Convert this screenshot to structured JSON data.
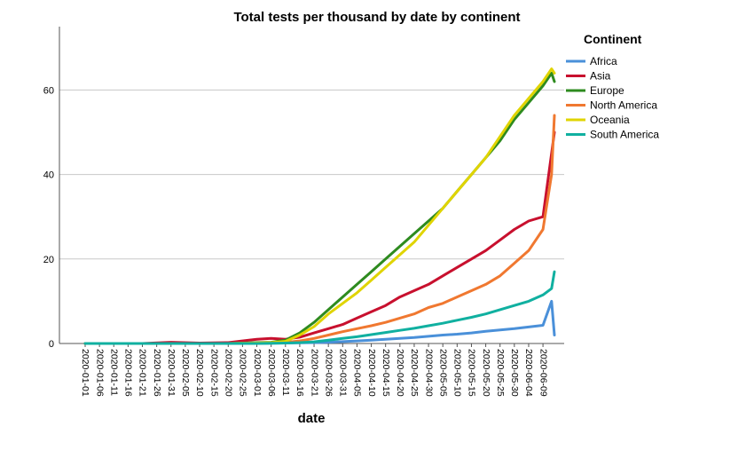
{
  "chart_data": {
    "type": "line",
    "title": "Total tests per thousand by date by continent",
    "xlabel": "date",
    "ylabel": "",
    "ylim": [
      0,
      75
    ],
    "yticks": [
      0,
      20,
      40,
      60
    ],
    "grid": "horizontal",
    "legend": {
      "title": "Continent",
      "placement": "right"
    },
    "x_tick_labels": [
      "2020-01-01",
      "2020-01-06",
      "2020-01-11",
      "2020-01-16",
      "2020-01-21",
      "2020-01-26",
      "2020-01-31",
      "2020-02-05",
      "2020-02-10",
      "2020-02-15",
      "2020-02-20",
      "2020-02-25",
      "2020-03-01",
      "2020-03-06",
      "2020-03-11",
      "2020-03-16",
      "2020-03-21",
      "2020-03-26",
      "2020-03-31",
      "2020-04-05",
      "2020-04-10",
      "2020-04-15",
      "2020-04-20",
      "2020-04-25",
      "2020-04-30",
      "2020-05-05",
      "2020-05-10",
      "2020-05-15",
      "2020-05-20",
      "2020-05-25",
      "2020-05-30",
      "2020-06-04",
      "2020-06-09"
    ],
    "x": [
      "2020-01-01",
      "2020-01-11",
      "2020-01-21",
      "2020-01-31",
      "2020-02-10",
      "2020-02-20",
      "2020-03-01",
      "2020-03-06",
      "2020-03-11",
      "2020-03-16",
      "2020-03-21",
      "2020-03-26",
      "2020-03-31",
      "2020-04-05",
      "2020-04-10",
      "2020-04-15",
      "2020-04-20",
      "2020-04-25",
      "2020-04-30",
      "2020-05-05",
      "2020-05-10",
      "2020-05-15",
      "2020-05-20",
      "2020-05-25",
      "2020-05-30",
      "2020-06-04",
      "2020-06-09",
      "2020-06-12",
      "2020-06-13"
    ],
    "series": [
      {
        "name": "Africa",
        "color": "#4a90d9",
        "values": [
          0,
          0,
          0,
          0,
          0,
          0,
          0,
          0.05,
          0.1,
          0.15,
          0.2,
          0.3,
          0.45,
          0.6,
          0.8,
          1.0,
          1.2,
          1.4,
          1.7,
          2.0,
          2.2,
          2.5,
          2.9,
          3.2,
          3.5,
          3.9,
          4.3,
          10.0,
          2.0
        ]
      },
      {
        "name": "Asia",
        "color": "#c8102e",
        "values": [
          0,
          0,
          0,
          0.3,
          0.1,
          0.2,
          1.0,
          1.2,
          1.0,
          1.5,
          2.5,
          3.5,
          4.5,
          6,
          7.5,
          9,
          11,
          12.5,
          14,
          16,
          18,
          20,
          22,
          24.5,
          27,
          29,
          30,
          45,
          50
        ]
      },
      {
        "name": "Europe",
        "color": "#2e8b1f",
        "values": [
          0,
          0,
          0,
          0,
          0,
          0,
          0.2,
          0.3,
          0.8,
          2.5,
          5,
          8,
          11,
          14,
          17,
          20,
          23,
          26,
          29,
          32,
          36,
          40,
          44,
          48,
          53,
          57,
          61,
          64,
          62
        ]
      },
      {
        "name": "North America",
        "color": "#f07830",
        "values": [
          0,
          0,
          0,
          0,
          0,
          0,
          0.1,
          0.2,
          0.3,
          0.6,
          1.2,
          2,
          2.8,
          3.5,
          4.2,
          5,
          6,
          7,
          8.5,
          9.5,
          11,
          12.5,
          14,
          16,
          19,
          22,
          27,
          40,
          54
        ]
      },
      {
        "name": "Oceania",
        "color": "#e0d400",
        "values": [
          0,
          0,
          0,
          0,
          0,
          0,
          0.1,
          0.2,
          0.5,
          2,
          4,
          7,
          9.5,
          12,
          15,
          18,
          21,
          24,
          28,
          32,
          36,
          40,
          44,
          49,
          54,
          58,
          62,
          65,
          64
        ]
      },
      {
        "name": "South America",
        "color": "#10b0a0",
        "values": [
          0,
          0,
          0,
          0,
          0,
          0,
          0,
          0.05,
          0.1,
          0.2,
          0.4,
          0.8,
          1.2,
          1.6,
          2.1,
          2.6,
          3.1,
          3.6,
          4.2,
          4.8,
          5.5,
          6.2,
          7,
          8,
          9,
          10,
          11.5,
          13,
          17
        ]
      }
    ]
  }
}
